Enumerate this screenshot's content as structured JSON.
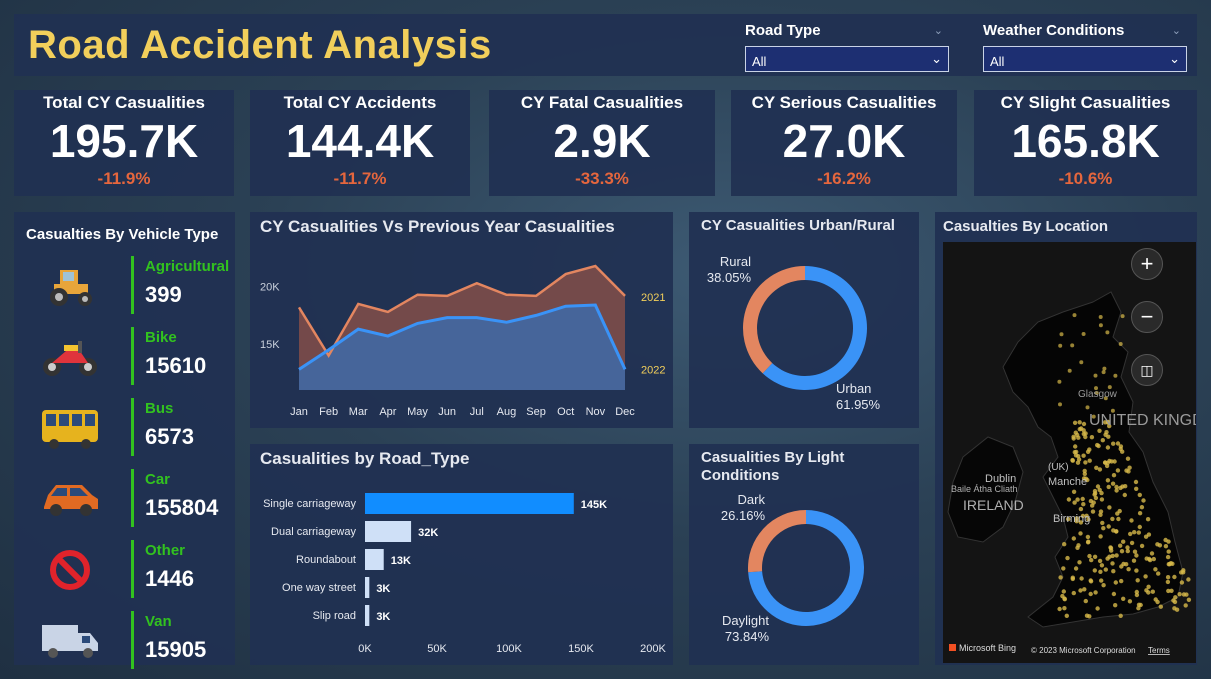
{
  "header": {
    "title": "Road Accident Analysis",
    "slicers": [
      {
        "label": "Road Type",
        "value": "All"
      },
      {
        "label": "Weather Conditions",
        "value": "All"
      }
    ]
  },
  "kpis": [
    {
      "label": "Total CY Casualities",
      "value": "195.7K",
      "change": "-11.9%"
    },
    {
      "label": "Total CY Accidents",
      "value": "144.4K",
      "change": "-11.7%"
    },
    {
      "label": "CY Fatal Casualities",
      "value": "2.9K",
      "change": "-33.3%"
    },
    {
      "label": "CY Serious Casualities",
      "value": "27.0K",
      "change": "-16.2%"
    },
    {
      "label": "CY Slight Casualities",
      "value": "165.8K",
      "change": "-10.6%"
    }
  ],
  "vehicles": {
    "title": "Casualties By Vehicle Type",
    "items": [
      {
        "name": "Agricultural",
        "value": "399",
        "icon": "tractor-icon"
      },
      {
        "name": "Bike",
        "value": "15610",
        "icon": "motorbike-icon"
      },
      {
        "name": "Bus",
        "value": "6573",
        "icon": "bus-icon"
      },
      {
        "name": "Car",
        "value": "155804",
        "icon": "car-icon"
      },
      {
        "name": "Other",
        "value": "1446",
        "icon": "no-entry-icon"
      },
      {
        "name": "Van",
        "value": "15905",
        "icon": "van-icon"
      }
    ]
  },
  "colors": {
    "accent_yellow": "#f2cf5b",
    "negative": "#e5663d",
    "vehicle_green": "#32c21f",
    "series_2021": "#e38660",
    "series_2022": "#3a93f7",
    "bar_primary": "#118dff",
    "bar_light": "#cfe0f7"
  },
  "chart_data": [
    {
      "type": "area",
      "title": "CY Casualities Vs Previous Year Casualities",
      "categories": [
        "Jan",
        "Feb",
        "Mar",
        "Apr",
        "May",
        "Jun",
        "Jul",
        "Aug",
        "Sep",
        "Oct",
        "Nov",
        "Dec"
      ],
      "y_ticks": [
        {
          "value": 15000,
          "label": "15K"
        },
        {
          "value": 20000,
          "label": "20K"
        }
      ],
      "ylim": [
        11000,
        22500
      ],
      "series": [
        {
          "name": "2021",
          "values": [
            18200,
            14000,
            18500,
            17800,
            19300,
            19200,
            20300,
            19300,
            19200,
            21100,
            21800,
            19200
          ]
        },
        {
          "name": "2022",
          "values": [
            12800,
            14500,
            16300,
            15700,
            16800,
            17300,
            17300,
            16900,
            17500,
            18300,
            18400,
            12800
          ]
        }
      ]
    },
    {
      "type": "bar",
      "title": "Casualities by Road_Type",
      "categories": [
        "Single carriageway",
        "Dual carriageway",
        "Roundabout",
        "One way street",
        "Slip road"
      ],
      "values": [
        145000,
        32000,
        13000,
        3000,
        3000
      ],
      "value_labels": [
        "145K",
        "32K",
        "13K",
        "3K",
        "3K"
      ],
      "x_ticks": [
        {
          "value": 0,
          "label": "0K"
        },
        {
          "value": 50000,
          "label": "50K"
        },
        {
          "value": 100000,
          "label": "100K"
        },
        {
          "value": 150000,
          "label": "150K"
        },
        {
          "value": 200000,
          "label": "200K"
        }
      ],
      "xlim": [
        0,
        200000
      ]
    },
    {
      "type": "pie",
      "title": "CY Casualities Urban/Rural",
      "slices": [
        {
          "label": "Urban",
          "value": 61.95,
          "display": "61.95%"
        },
        {
          "label": "Rural",
          "value": 38.05,
          "display": "38.05%"
        }
      ]
    },
    {
      "type": "pie",
      "title": "Casualities By Light Conditions",
      "slices": [
        {
          "label": "Daylight",
          "value": 73.84,
          "display": "73.84%"
        },
        {
          "label": "Dark",
          "value": 26.16,
          "display": "26.16%"
        }
      ]
    }
  ],
  "map": {
    "title": "Casualties By Location",
    "labels": {
      "country": "UNITED KINGDOM",
      "ireland": "IRELAND",
      "dublin": "Dublin",
      "baile": "Baile Átha Cliath",
      "manchester": "Manche",
      "birmingham": "Birming",
      "uk": "(UK)",
      "glasgow": "Glasgow"
    },
    "attribution": "© 2023 Microsoft Corporation",
    "terms": "Terms",
    "bing": "Microsoft Bing"
  }
}
